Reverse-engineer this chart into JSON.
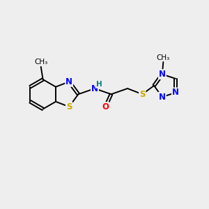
{
  "bg_color": "#eeeeee",
  "bond_color": "#000000",
  "atom_colors": {
    "N": "#0000ff",
    "S": "#ccaa00",
    "O": "#ff0000",
    "H": "#008080",
    "C": "#000000"
  },
  "font_size": 8.5,
  "lw": 1.4
}
